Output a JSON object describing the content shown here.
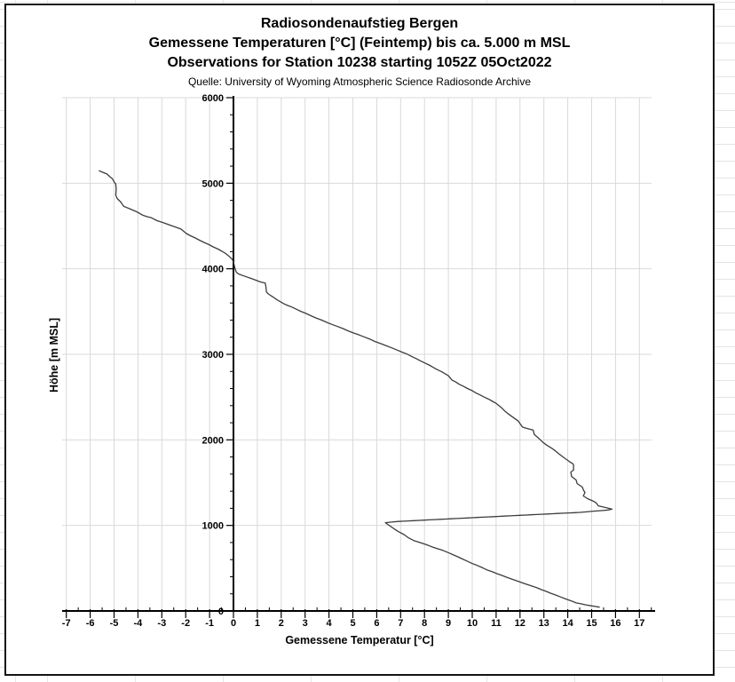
{
  "chart_data": {
    "type": "line",
    "title": "Radiosondenaufstieg Bergen",
    "subtitle": "Gemessene Temperaturen [°C] (Feintemp) bis ca. 5.000 m MSL",
    "note": "Observations for Station 10238 starting 1052Z 05Oct2022",
    "source": "Quelle: University of Wyoming Atmospheric Science Radiosonde Archive",
    "xlabel": "Gemessene Temperatur [°C]",
    "ylabel": "Höhe [m MSL]",
    "xlim": [
      -7.25,
      17.55
    ],
    "ylim": [
      0,
      6000
    ],
    "xticks": [
      -7,
      -6,
      -5,
      -4,
      -3,
      -2,
      -1,
      0,
      1,
      2,
      3,
      4,
      5,
      6,
      7,
      8,
      9,
      10,
      11,
      12,
      13,
      14,
      15,
      16,
      17
    ],
    "yticks": [
      0,
      1000,
      2000,
      3000,
      4000,
      5000,
      6000
    ],
    "x_minor_step": 0.5,
    "y_minor_step": 200,
    "grid": "both",
    "legend": "none",
    "series": [
      {
        "name": "Gemessene Temperatur (Feintemp)",
        "units": {
          "x": "°C",
          "y": "m MSL"
        },
        "points_T_h": [
          [
            -5.62,
            5146
          ],
          [
            -5.48,
            5128
          ],
          [
            -5.3,
            5108
          ],
          [
            -5.17,
            5075
          ],
          [
            -5.07,
            5052
          ],
          [
            -4.99,
            5012
          ],
          [
            -4.93,
            4990
          ],
          [
            -4.91,
            4930
          ],
          [
            -4.93,
            4862
          ],
          [
            -4.87,
            4822
          ],
          [
            -4.72,
            4780
          ],
          [
            -4.6,
            4730
          ],
          [
            -4.32,
            4698
          ],
          [
            -4.05,
            4666
          ],
          [
            -3.79,
            4626
          ],
          [
            -3.43,
            4595
          ],
          [
            -3.2,
            4562
          ],
          [
            -2.95,
            4540
          ],
          [
            -2.71,
            4516
          ],
          [
            -2.45,
            4490
          ],
          [
            -2.2,
            4465
          ],
          [
            -1.97,
            4412
          ],
          [
            -1.6,
            4360
          ],
          [
            -1.23,
            4308
          ],
          [
            -0.85,
            4256
          ],
          [
            -0.48,
            4204
          ],
          [
            -0.2,
            4150
          ],
          [
            -0.05,
            4110
          ],
          [
            0.02,
            4060
          ],
          [
            0.06,
            4010
          ],
          [
            0.12,
            3960
          ],
          [
            0.22,
            3938
          ],
          [
            0.5,
            3910
          ],
          [
            0.75,
            3886
          ],
          [
            1.13,
            3846
          ],
          [
            1.33,
            3834
          ],
          [
            1.38,
            3730
          ],
          [
            1.46,
            3706
          ],
          [
            1.83,
            3636
          ],
          [
            2.12,
            3590
          ],
          [
            2.45,
            3552
          ],
          [
            2.82,
            3502
          ],
          [
            3.25,
            3450
          ],
          [
            3.7,
            3400
          ],
          [
            4.12,
            3350
          ],
          [
            4.6,
            3300
          ],
          [
            5.02,
            3250
          ],
          [
            5.5,
            3200
          ],
          [
            5.92,
            3150
          ],
          [
            6.4,
            3100
          ],
          [
            6.85,
            3050
          ],
          [
            7.28,
            3002
          ],
          [
            7.65,
            2950
          ],
          [
            8.0,
            2900
          ],
          [
            8.35,
            2850
          ],
          [
            8.7,
            2800
          ],
          [
            9.0,
            2750
          ],
          [
            9.15,
            2700
          ],
          [
            9.45,
            2650
          ],
          [
            9.8,
            2600
          ],
          [
            10.15,
            2550
          ],
          [
            10.5,
            2500
          ],
          [
            10.85,
            2450
          ],
          [
            11.0,
            2427
          ],
          [
            11.38,
            2333
          ],
          [
            11.67,
            2271
          ],
          [
            11.93,
            2219
          ],
          [
            12.1,
            2150
          ],
          [
            12.55,
            2115
          ],
          [
            12.6,
            2063
          ],
          [
            12.97,
            1969
          ],
          [
            13.12,
            1938
          ],
          [
            13.31,
            1906
          ],
          [
            13.79,
            1802
          ],
          [
            14.05,
            1750
          ],
          [
            14.22,
            1719
          ],
          [
            14.24,
            1708
          ],
          [
            14.24,
            1646
          ],
          [
            14.13,
            1625
          ],
          [
            14.16,
            1573
          ],
          [
            14.35,
            1531
          ],
          [
            14.39,
            1490
          ],
          [
            14.61,
            1448
          ],
          [
            14.65,
            1417
          ],
          [
            14.72,
            1385
          ],
          [
            14.65,
            1344
          ],
          [
            14.83,
            1313
          ],
          [
            15.09,
            1281
          ],
          [
            15.2,
            1260
          ],
          [
            15.28,
            1229
          ],
          [
            15.6,
            1208
          ],
          [
            15.85,
            1190
          ],
          [
            15.7,
            1180
          ],
          [
            14.5,
            1152
          ],
          [
            12.0,
            1118
          ],
          [
            10.0,
            1090
          ],
          [
            8.0,
            1062
          ],
          [
            6.9,
            1046
          ],
          [
            6.36,
            1032
          ],
          [
            6.55,
            995
          ],
          [
            6.91,
            927
          ],
          [
            7.55,
            823
          ],
          [
            8.77,
            708
          ],
          [
            9.78,
            583
          ],
          [
            10.63,
            479
          ],
          [
            11.63,
            375
          ],
          [
            12.49,
            292
          ],
          [
            13.49,
            187
          ],
          [
            14.35,
            94
          ],
          [
            14.98,
            60
          ],
          [
            15.32,
            45
          ]
        ]
      }
    ]
  },
  "colors": {
    "curve": "#3c3c3c",
    "grid": "#d9d9d9",
    "axis": "#000000",
    "text": "#000000",
    "chart_border": "#141414",
    "sheet_line": "#e4e4e4",
    "background": "#ffffff"
  }
}
